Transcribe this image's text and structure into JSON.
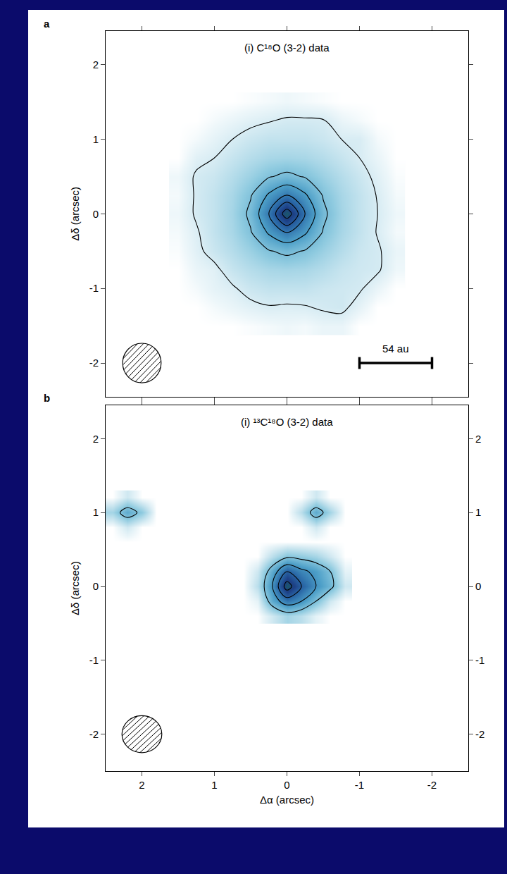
{
  "chart_data": [
    {
      "type": "contour",
      "label": "a",
      "title": "(i) C¹⁸O (3-2) data",
      "y_label": "Δδ (arcsec)",
      "xlim": [
        2.5,
        -2.5
      ],
      "ylim": [
        -2.45,
        2.45
      ],
      "xticks": [
        2,
        1,
        0,
        -1,
        -2
      ],
      "yticks": [
        2,
        1,
        0,
        -1,
        -2
      ],
      "tick_labels": "y",
      "x": [
        -1.5,
        -1.25,
        -1,
        -0.75,
        -0.5,
        -0.25,
        0,
        0.25,
        0.5,
        0.75,
        1,
        1.25,
        1.5
      ],
      "y": [
        -1.5,
        -1.25,
        -1,
        -0.75,
        -0.5,
        -0.25,
        0,
        0.25,
        0.5,
        0.75,
        1,
        1.25,
        1.5
      ],
      "z": [
        [
          0,
          0,
          0,
          0.04,
          0.04,
          0.02,
          0.03,
          0.02,
          0.01,
          0,
          0,
          0,
          0
        ],
        [
          0,
          0,
          0.05,
          0.1,
          0.09,
          0.075,
          0.07,
          0.075,
          0.06,
          0.04,
          0.02,
          0,
          0
        ],
        [
          0,
          0.04,
          0.09,
          0.1,
          0.11,
          0.13,
          0.13,
          0.13,
          0.11,
          0.07,
          0.05,
          0.02,
          0
        ],
        [
          0.03,
          0.09,
          0.1,
          0.12,
          0.16,
          0.19,
          0.2,
          0.19,
          0.16,
          0.12,
          0.06,
          0.04,
          0
        ],
        [
          0.04,
          0.09,
          0.11,
          0.16,
          0.22,
          0.29,
          0.33,
          0.29,
          0.22,
          0.16,
          0.11,
          0.06,
          0.01
        ],
        [
          0.02,
          0.075,
          0.13,
          0.19,
          0.29,
          0.47,
          0.6,
          0.47,
          0.29,
          0.19,
          0.13,
          0.07,
          0.02
        ],
        [
          0.03,
          0.08,
          0.13,
          0.2,
          0.33,
          0.6,
          1,
          0.6,
          0.33,
          0.2,
          0.13,
          0.09,
          0.03
        ],
        [
          0.02,
          0.075,
          0.13,
          0.19,
          0.29,
          0.47,
          0.6,
          0.47,
          0.29,
          0.19,
          0.13,
          0.09,
          0.02
        ],
        [
          0.01,
          0.06,
          0.11,
          0.16,
          0.22,
          0.29,
          0.33,
          0.29,
          0.22,
          0.16,
          0.11,
          0.09,
          0.03
        ],
        [
          0,
          0.04,
          0.08,
          0.12,
          0.16,
          0.19,
          0.2,
          0.19,
          0.16,
          0.12,
          0.08,
          0.06,
          0
        ],
        [
          0,
          0.02,
          0.08,
          0.08,
          0.11,
          0.13,
          0.13,
          0.13,
          0.11,
          0.08,
          0.05,
          0.02,
          0
        ],
        [
          0,
          0,
          0.02,
          0.04,
          0.085,
          0.09,
          0.09,
          0.075,
          0.06,
          0.04,
          0.02,
          0,
          0
        ],
        [
          0,
          0,
          0,
          0,
          0.01,
          0.02,
          0.03,
          0.02,
          0.01,
          0,
          0,
          0,
          0
        ]
      ],
      "levels": [
        0.08,
        0.3,
        0.45,
        0.6,
        0.75,
        0.9
      ],
      "beam": {
        "center": [
          2,
          -2
        ],
        "bmaj": 0.53,
        "bmin": 0.53
      },
      "scale_bar": {
        "label": "54 au",
        "x": [
          -1,
          -2
        ],
        "y": -2
      }
    },
    {
      "type": "contour",
      "label": "b",
      "title": "(i) ¹³C¹⁸O (3-2) data",
      "x_label": "Δα (arcsec)",
      "y_label": "Δδ (arcsec)",
      "xlim": [
        2.5,
        -2.5
      ],
      "ylim": [
        -2.5,
        2.45
      ],
      "xticks": [
        2,
        1,
        0,
        -1,
        -2
      ],
      "yticks": [
        2,
        1,
        0,
        -1,
        -2
      ],
      "y2lim": [
        -2.5,
        2.45
      ],
      "y2ticks": [
        2,
        1,
        0,
        -1,
        -2
      ],
      "x": [
        -0.8,
        -0.6,
        -0.4,
        -0.2,
        0,
        0.2,
        0.4,
        0.6,
        0.8,
        1,
        1.2,
        1.4,
        1.6,
        1.8,
        2,
        2.2,
        2.4
      ],
      "y": [
        -0.4,
        -0.2,
        0,
        0.2,
        0.4,
        0.6,
        0.8,
        1,
        1.2
      ],
      "z": [
        [
          0,
          0,
          0.05,
          0.15,
          0.2,
          0.1,
          0,
          0,
          0,
          0,
          0,
          0,
          0,
          0,
          0,
          0,
          0
        ],
        [
          0,
          0.1,
          0.3,
          0.5,
          0.6,
          0.4,
          0.05,
          0,
          0,
          0,
          0,
          0,
          0,
          0,
          0,
          0,
          0
        ],
        [
          0.1,
          0.35,
          0.5,
          0.7,
          1,
          0.5,
          0.15,
          0,
          0,
          0,
          0,
          0,
          0,
          0,
          0,
          0,
          0
        ],
        [
          0.05,
          0.3,
          0.45,
          0.55,
          0.7,
          0.4,
          0.1,
          0,
          0,
          0,
          0,
          0,
          0,
          0,
          0,
          0,
          0
        ],
        [
          0,
          0.1,
          0.2,
          0.25,
          0.28,
          0.15,
          0,
          0,
          0,
          0,
          0,
          0,
          0,
          0,
          0,
          0,
          0
        ],
        [
          0,
          0,
          0,
          0,
          0,
          0,
          0,
          0,
          0,
          0,
          0,
          0,
          0,
          0,
          0,
          0,
          0
        ],
        [
          0,
          0,
          0.1,
          0,
          0,
          0,
          0,
          0,
          0,
          0,
          0,
          0,
          0,
          0,
          0,
          0.1,
          0
        ],
        [
          0,
          0.2,
          0.4,
          0.15,
          0,
          0,
          0,
          0,
          0,
          0,
          0,
          0,
          0,
          0,
          0.25,
          0.4,
          0.2
        ],
        [
          0,
          0,
          0.1,
          0,
          0,
          0,
          0,
          0,
          0,
          0,
          0,
          0,
          0,
          0,
          0,
          0.1,
          0
        ]
      ],
      "levels": [
        0.3,
        0.5,
        0.7,
        0.9
      ],
      "beam": {
        "center": [
          2,
          -2
        ],
        "bmaj": 0.55,
        "bmin": 0.5
      }
    }
  ]
}
